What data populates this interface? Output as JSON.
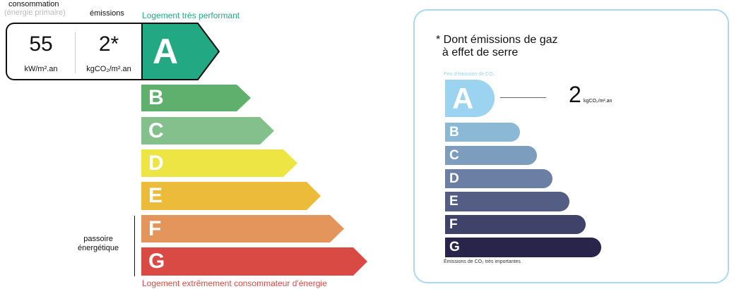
{
  "dpe": {
    "header_consumption": "consommation",
    "header_primary": "(énergie primaire)",
    "header_emissions": "émissions",
    "top_label": "Logement très performant",
    "bottom_label": "Logement extrêmement consommateur d'énergie",
    "consumption_value": "55",
    "consumption_unit": "kW/m².an",
    "emissions_value": "2*",
    "emissions_unit": "kgCO₂/m².an",
    "passoire_label": "passoire\nénergétique",
    "current_class": "A",
    "classes": [
      {
        "letter": "A",
        "color": "#23a884"
      },
      {
        "letter": "B",
        "color": "#5fb06c"
      },
      {
        "letter": "C",
        "color": "#84c08c"
      },
      {
        "letter": "D",
        "color": "#ece543"
      },
      {
        "letter": "E",
        "color": "#edbb3a"
      },
      {
        "letter": "F",
        "color": "#e4955b"
      },
      {
        "letter": "G",
        "color": "#d94a44"
      }
    ]
  },
  "ges": {
    "note": "* Dont émissions de gaz\n  à effet de serre",
    "low_label": "Peu d'émission de CO₂",
    "high_label": "Émissions de CO₂ très importantes",
    "value": "2",
    "unit": "kgCO₂/m².an",
    "current_class": "A",
    "classes": [
      {
        "letter": "A",
        "color": "#9bd3f0"
      },
      {
        "letter": "B",
        "color": "#8bb8d4"
      },
      {
        "letter": "C",
        "color": "#7c9dbd"
      },
      {
        "letter": "D",
        "color": "#6b7ea3"
      },
      {
        "letter": "E",
        "color": "#545d83"
      },
      {
        "letter": "F",
        "color": "#3f4269"
      },
      {
        "letter": "G",
        "color": "#28244a"
      }
    ]
  }
}
